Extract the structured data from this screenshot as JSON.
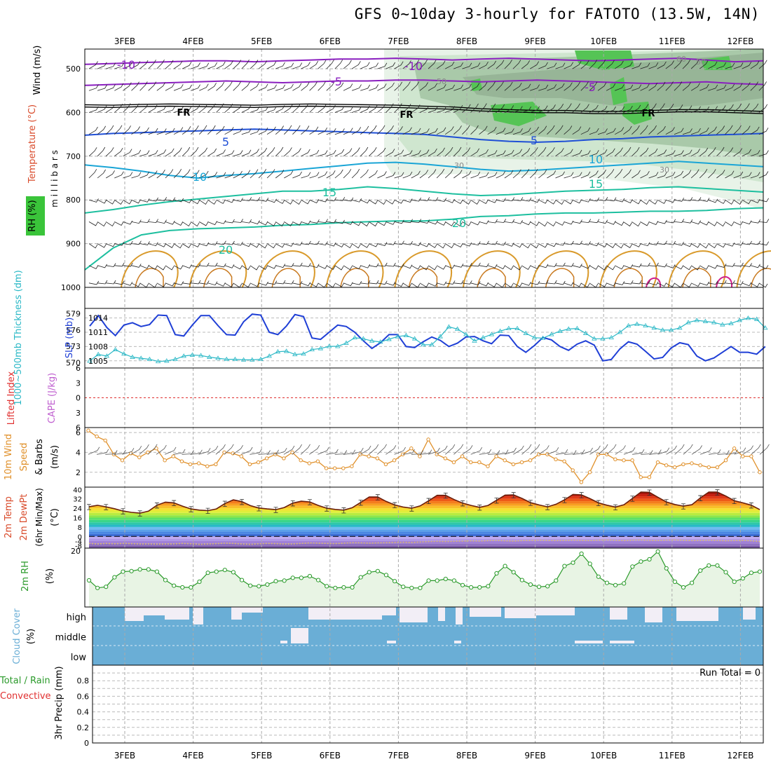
{
  "title": "GFS 0~10day 3-hourly for FATOTO (13.5W, 14N)",
  "dates": [
    "3FEB",
    "4FEB",
    "5FEB",
    "6FEB",
    "7FEB",
    "8FEB",
    "9FEB",
    "10FEB",
    "11FEB",
    "12FEB"
  ],
  "colors": {
    "purple": "#8a1fbf",
    "blue": "#1f4fd6",
    "cyan": "#1aa5d6",
    "teal": "#1dbf9f",
    "orange": "#d99a2b",
    "rh_green": "#3ac43a",
    "cloud": "#6aaed6",
    "cloud_bg": "#f2eef6",
    "slp": "#1f3fd6",
    "thick": "#2ab8c6",
    "wind10": "#e0902a",
    "rh2m": "#2a9a2a"
  },
  "chart_data": [
    {
      "type": "contour",
      "panel": "upper-air",
      "ylabel_parts": [
        "Wind (m/s)",
        "Temperature (°C)",
        "RH (%)"
      ],
      "yunit": "m i l l i b a r s",
      "yticks": [
        500,
        600,
        700,
        800,
        900,
        1000
      ],
      "ylim": [
        455,
        1000
      ],
      "isotherm_labels": [
        {
          "value": "-10",
          "series": "purple"
        },
        {
          "value": "-10",
          "series": "purple"
        },
        {
          "value": "-5",
          "series": "purple"
        },
        {
          "value": "-5",
          "series": "purple"
        },
        {
          "value": "FR",
          "series": "black"
        },
        {
          "value": "FR",
          "series": "black"
        },
        {
          "value": "FR",
          "series": "black"
        },
        {
          "value": "5",
          "series": "blue"
        },
        {
          "value": "5",
          "series": "blue"
        },
        {
          "value": "10",
          "series": "cyan"
        },
        {
          "value": "10",
          "series": "cyan"
        },
        {
          "value": "15",
          "series": "teal"
        },
        {
          "value": "15",
          "series": "teal"
        },
        {
          "value": "20",
          "series": "teal"
        },
        {
          "value": "20",
          "series": "teal"
        }
      ],
      "rh_labels": [
        "50",
        "50",
        "60",
        "30",
        "30"
      ],
      "isotherms": [
        {
          "name": "-10",
          "color": "purple",
          "p": [
            490,
            488,
            486,
            484,
            482,
            482,
            484,
            482,
            480,
            478,
            478,
            476,
            478,
            480,
            478,
            476,
            478,
            480,
            482,
            480,
            478,
            476,
            480,
            484,
            482
          ]
        },
        {
          "name": "-5",
          "color": "purple",
          "p": [
            538,
            536,
            534,
            532,
            530,
            528,
            530,
            532,
            530,
            528,
            528,
            526,
            526,
            528,
            530,
            528,
            526,
            528,
            530,
            532,
            534,
            532,
            530,
            534,
            536
          ]
        },
        {
          "name": "FR",
          "color": "black",
          "p": [
            585,
            586,
            584,
            583,
            584,
            585,
            586,
            584,
            583,
            584,
            585,
            586,
            588,
            590,
            594,
            596,
            598,
            598,
            600,
            600,
            598,
            596,
            596,
            598,
            600
          ]
        },
        {
          "name": "5",
          "color": "blue",
          "p": [
            652,
            648,
            646,
            644,
            642,
            640,
            638,
            640,
            642,
            644,
            646,
            648,
            650,
            656,
            662,
            666,
            668,
            666,
            662,
            660,
            656,
            654,
            652,
            650,
            648
          ]
        },
        {
          "name": "10",
          "color": "cyan",
          "p": [
            720,
            726,
            734,
            744,
            750,
            744,
            740,
            734,
            728,
            722,
            716,
            714,
            718,
            724,
            730,
            734,
            732,
            728,
            724,
            720,
            716,
            712,
            716,
            720,
            724
          ]
        },
        {
          "name": "15",
          "color": "teal",
          "p": [
            830,
            822,
            812,
            804,
            798,
            792,
            786,
            780,
            780,
            776,
            770,
            774,
            780,
            786,
            790,
            788,
            784,
            780,
            778,
            776,
            772,
            770,
            774,
            778,
            782
          ]
        },
        {
          "name": "20",
          "color": "teal",
          "p": [
            960,
            910,
            880,
            870,
            866,
            864,
            862,
            858,
            856,
            852,
            850,
            848,
            848,
            844,
            838,
            836,
            832,
            830,
            830,
            828,
            826,
            826,
            824,
            820,
            818
          ]
        }
      ]
    },
    {
      "type": "line",
      "panel": "slp-thickness",
      "ylabel_left": "1000~500mb Thickness (dm)",
      "ylabel_right": "SLP (mb)",
      "yticks_left": [
        570,
        573,
        576,
        579
      ],
      "yticks_right": [
        1005,
        1008,
        1011,
        1014
      ],
      "x_days": [
        0,
        0.125,
        0.25,
        0.375,
        0.5,
        0.625,
        0.75,
        0.875,
        1,
        1.125,
        1.25,
        1.375,
        1.5,
        1.625,
        1.75,
        1.875,
        2,
        2.125,
        2.25,
        2.375,
        2.5,
        2.625,
        2.75,
        2.875,
        3,
        3.125,
        3.25,
        3.375,
        3.5,
        3.625,
        3.75,
        3.875,
        4,
        4.125,
        4.25,
        4.375,
        4.5,
        4.625,
        4.75,
        4.875,
        5,
        5.125,
        5.25,
        5.375,
        5.5,
        5.625,
        5.75,
        5.875,
        6,
        6.125,
        6.25,
        6.375,
        6.5,
        6.625,
        6.75,
        6.875,
        7,
        7.125,
        7.25,
        7.375,
        7.5,
        7.625,
        7.75,
        7.875,
        8,
        8.125,
        8.25,
        8.375,
        8.5,
        8.625,
        8.75,
        8.875,
        9,
        9.125,
        9.25,
        9.375,
        9.5,
        9.625,
        9.75,
        9.875
      ],
      "series": [
        {
          "name": "SLP (mb)",
          "color": "slp",
          "values": [
            1012.3,
            1014.5,
            1012.0,
            1010.3,
            1012.5,
            1013.0,
            1012.2,
            1012.6,
            1014.6,
            1014.5,
            1010.5,
            1010.2,
            1012.5,
            1014.5,
            1014.5,
            1012.4,
            1010.5,
            1010.4,
            1013.2,
            1014.8,
            1014.6,
            1011.0,
            1010.5,
            1012.3,
            1014.7,
            1014.3,
            1009.8,
            1009.5,
            1011.0,
            1012.5,
            1012.2,
            1011.0,
            1009.2,
            1007.6,
            1008.8,
            1010.5,
            1010.5,
            1008.0,
            1007.8,
            1009.0,
            1010.0,
            1009.3,
            1008.0,
            1008.7,
            1010.0,
            1010.1,
            1009.2,
            1008.6,
            1010.4,
            1010.3,
            1008.0,
            1006.8,
            1008.2,
            1009.9,
            1009.4,
            1008.0,
            1007.2,
            1008.5,
            1009.2,
            1008.3,
            1005.0,
            1005.3,
            1007.5,
            1009.0,
            1008.5,
            1007.0,
            1005.4,
            1005.7,
            1007.7,
            1008.8,
            1008.4,
            1006.0,
            1005.0,
            1005.6,
            1006.8,
            1008.0,
            1006.8,
            1006.8,
            1006.4,
            1008.0
          ]
        },
        {
          "name": "Thickness (dm)",
          "color": "thick",
          "values": [
            570.3,
            571.5,
            571.2,
            572.4,
            571.6,
            571.0,
            570.8,
            570.6,
            570.2,
            570.3,
            570.6,
            571.2,
            571.4,
            571.3,
            571.0,
            570.8,
            570.6,
            570.6,
            570.5,
            570.5,
            570.6,
            571.2,
            572.0,
            572.1,
            571.5,
            571.6,
            572.4,
            572.6,
            573.0,
            573.0,
            573.6,
            574.6,
            574.4,
            574.0,
            573.8,
            574.3,
            574.8,
            575.0,
            574.4,
            573.3,
            573.3,
            574.8,
            576.6,
            576.2,
            575.2,
            574.0,
            574.6,
            575.2,
            575.8,
            576.3,
            576.3,
            575.4,
            574.6,
            574.5,
            575.2,
            575.8,
            576.2,
            576.3,
            575.4,
            574.4,
            574.4,
            574.6,
            575.6,
            576.8,
            577.1,
            576.8,
            576.4,
            576.0,
            576.0,
            576.4,
            577.4,
            577.8,
            577.6,
            577.4,
            577.0,
            577.2,
            577.8,
            578.2,
            578.0,
            576.4
          ]
        }
      ]
    },
    {
      "type": "line",
      "panel": "stability",
      "ylabel_left": "Lifted Index",
      "ylabel_right": "CAPE (J/kg)",
      "yticks": [
        "6",
        "3",
        "0",
        "3",
        "6"
      ],
      "reference_line": 0
    },
    {
      "type": "line",
      "panel": "10m-wind",
      "ylabel": "10m Wind Speed & Barbs (m/s)",
      "yticks": [
        2,
        4,
        6
      ],
      "ylim": [
        0.5,
        6.5
      ],
      "values": [
        6.2,
        5.6,
        5.2,
        3.8,
        3.2,
        3.9,
        3.5,
        4.0,
        4.4,
        3.2,
        3.6,
        3.1,
        2.8,
        2.9,
        2.6,
        2.8,
        4.0,
        3.9,
        3.6,
        2.8,
        3.0,
        3.4,
        3.8,
        3.4,
        4.0,
        3.2,
        2.9,
        3.1,
        2.4,
        2.4,
        2.4,
        2.6,
        3.8,
        3.6,
        3.4,
        2.8,
        3.2,
        3.8,
        4.4,
        3.6,
        5.3,
        3.8,
        3.4,
        3.0,
        3.6,
        3.0,
        3.0,
        2.6,
        3.6,
        3.2,
        2.8,
        3.0,
        3.2,
        3.8,
        3.8,
        3.3,
        3.1,
        2.2,
        1.0,
        2.0,
        3.8,
        3.8,
        3.3,
        3.2,
        3.2,
        1.5,
        1.5,
        3.0,
        2.7,
        2.5,
        2.8,
        2.9,
        2.7,
        2.5,
        2.5,
        3.2,
        4.4,
        3.6,
        3.6,
        2.0
      ]
    },
    {
      "type": "area",
      "panel": "2m-temp",
      "ylabel": "2m Temp 2m DewPt (6hr Min/Max) (°C)",
      "yticks": [
        "-8",
        "-4",
        "0",
        "8",
        "16",
        "24",
        "32",
        "40"
      ],
      "temp": [
        25.3,
        26.5,
        25.2,
        23.6,
        21.6,
        20.5,
        19.8,
        21.5,
        26.6,
        29.2,
        28.6,
        25.8,
        23.4,
        22.4,
        22.0,
        23.4,
        28.0,
        31.2,
        29.6,
        26.2,
        24.2,
        23.4,
        22.8,
        24.6,
        28.4,
        30.0,
        29.4,
        26.4,
        24.0,
        23.0,
        22.4,
        24.4,
        29.0,
        33.6,
        33.6,
        29.8,
        26.8,
        25.0,
        24.0,
        26.0,
        30.4,
        35.0,
        35.0,
        31.4,
        28.4,
        26.4,
        24.8,
        26.4,
        30.8,
        35.2,
        35.4,
        32.4,
        28.8,
        26.8,
        25.2,
        27.4,
        31.2,
        35.8,
        35.4,
        32.2,
        28.6,
        26.6,
        25.0,
        27.0,
        32.4,
        37.8,
        37.6,
        33.4,
        29.4,
        27.2,
        25.8,
        27.0,
        32.8,
        37.8,
        37.8,
        34.4,
        30.4,
        28.6,
        26.6,
        22.8
      ],
      "dewpt": [
        -6,
        -6.5,
        -6,
        -6.3,
        -6,
        -6.2,
        -6.5,
        -6.4,
        -6.6,
        -6.5,
        -6.4,
        -6.0,
        -6.3,
        -6.8,
        -6.5,
        -6.2,
        -5.8,
        -6.0,
        -6.5,
        -6.8,
        -6.3,
        -6.0,
        -6.2,
        -6.5,
        -6.4,
        -6.0,
        -5.6,
        -5.8,
        -6.0,
        -6.2,
        -5.8,
        -5.4,
        -5.5,
        -5.8,
        -5.6,
        -5.4,
        -5.2,
        -5.0,
        -5.2,
        -4.8,
        -4.4,
        -4.2,
        -4.4,
        -4.2,
        -4.0,
        -3.8,
        -4.0,
        -3.6,
        -3.4,
        -3.8,
        -4.0,
        -3.6,
        -3.4,
        -3.2,
        -3.4,
        -3.6,
        -3.4,
        -3.2,
        -3.4,
        -3.6,
        -3.2,
        -3.0,
        -3.3,
        -3.6,
        -3.2,
        -3.0,
        -3.4,
        -3.5,
        -3.2,
        -3.0,
        -3.3,
        -3.6,
        -3.4,
        -3.2,
        -3.5,
        -3.8,
        -3.6,
        -3.4,
        -3.8,
        -4.4
      ]
    },
    {
      "type": "area",
      "panel": "2m-rh",
      "ylabel": "2m RH (%)",
      "yticks": [
        20
      ],
      "ylim": [
        0,
        21
      ],
      "values": [
        9.5,
        6.8,
        7.2,
        10.6,
        12.6,
        12.8,
        13.4,
        13.4,
        12.6,
        9.6,
        7.6,
        7.0,
        7.0,
        9.0,
        12.2,
        12.6,
        13.2,
        12.4,
        9.6,
        7.6,
        7.4,
        8.0,
        9.2,
        9.4,
        10.4,
        10.4,
        11.0,
        9.6,
        7.4,
        6.8,
        7.0,
        7.0,
        10.6,
        12.4,
        12.8,
        11.4,
        9.2,
        7.2,
        6.8,
        6.8,
        9.4,
        9.4,
        10.0,
        9.4,
        7.8,
        7.0,
        7.0,
        7.4,
        12.0,
        14.6,
        12.4,
        9.6,
        8.0,
        7.2,
        7.4,
        9.4,
        14.6,
        15.8,
        19.0,
        15.4,
        10.8,
        8.6,
        7.8,
        8.4,
        14.4,
        16.2,
        17.0,
        19.8,
        13.8,
        9.0,
        7.0,
        8.6,
        13.0,
        14.8,
        14.8,
        12.4,
        9.0,
        10.2,
        12.2,
        12.6
      ]
    },
    {
      "type": "heatmap",
      "panel": "cloud-cover",
      "ylabel": "Cloud Cover (%)",
      "levels": [
        "high",
        "middle",
        "low"
      ]
    },
    {
      "type": "bar",
      "panel": "precip",
      "ylabel": "3hr Precip (mm)",
      "side_labels": [
        "Total / Rain",
        "Convective"
      ],
      "yticks": [
        0,
        0.2,
        0.4,
        0.6,
        0.8
      ],
      "ylim": [
        0,
        1
      ],
      "run_total": "Run Total = 0",
      "values": []
    }
  ]
}
